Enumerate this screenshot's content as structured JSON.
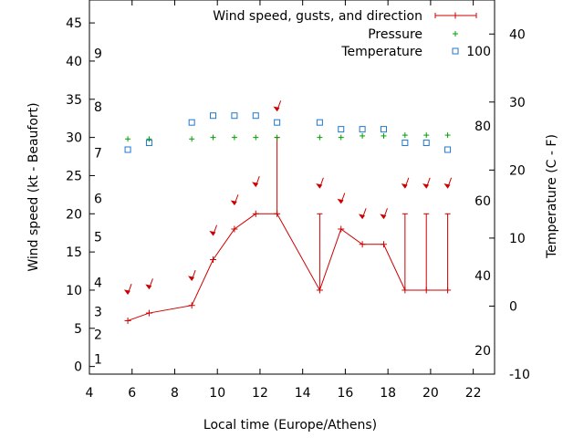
{
  "chart_data": {
    "type": "line",
    "xlabel": "Local time (Europe/Athens)",
    "ylabel": "Wind speed (kt - Beaufort)",
    "y2label": "Temperature (C - F)",
    "xlim": [
      4,
      23
    ],
    "ylim": [
      -1,
      48
    ],
    "y2lim": [
      -10,
      45
    ],
    "x_ticks": [
      4,
      6,
      8,
      10,
      12,
      14,
      16,
      18,
      20,
      22
    ],
    "y_ticks": [
      0,
      5,
      10,
      15,
      20,
      25,
      30,
      35,
      40,
      45
    ],
    "y2_ticks": [
      -10,
      0,
      10,
      20,
      30,
      40
    ],
    "beaufort_labels": [
      {
        "text": "1",
        "y": 1
      },
      {
        "text": "2",
        "y": 4.2
      },
      {
        "text": "3",
        "y": 7.2
      },
      {
        "text": "4",
        "y": 11
      },
      {
        "text": "5",
        "y": 17
      },
      {
        "text": "6",
        "y": 22
      },
      {
        "text": "7",
        "y": 28
      },
      {
        "text": "8",
        "y": 34
      },
      {
        "text": "9",
        "y": 41
      }
    ],
    "fahrenheit_labels": [
      {
        "text": "20",
        "y": -6.5
      },
      {
        "text": "40",
        "y": 4.5
      },
      {
        "text": "60",
        "y": 15.5
      },
      {
        "text": "80",
        "y": 26.5
      },
      {
        "text": "100",
        "y": 37.5
      }
    ],
    "legend": {
      "position": "top-right",
      "entries": [
        {
          "label": "Wind speed, gusts, and direction",
          "color": "#cc0000",
          "marker": "errorbar"
        },
        {
          "label": "Pressure",
          "color": "#00a000",
          "marker": "plus"
        },
        {
          "label": "Temperature",
          "color": "#1f77cc",
          "marker": "square"
        }
      ]
    },
    "series": [
      {
        "name": "Wind speed, gusts, and direction",
        "color": "#cc0000",
        "x": [
          5.8,
          6.8,
          8.8,
          9.8,
          10.8,
          11.8,
          12.8,
          14.8,
          15.8,
          16.8,
          17.8,
          18.8,
          19.8,
          20.8
        ],
        "y": [
          6,
          7,
          8,
          14,
          18,
          20,
          20,
          10,
          18,
          16,
          16,
          10,
          10,
          10
        ],
        "gust": [
          6,
          7,
          8,
          14,
          18,
          20,
          30,
          20,
          18,
          16,
          16,
          20,
          20,
          20
        ],
        "arrow_y": [
          9.5,
          10.2,
          11.3,
          17.2,
          21.2,
          23.6,
          33.5,
          23.4,
          21.4,
          19.4,
          19.4,
          23.4,
          23.4,
          23.4
        ]
      },
      {
        "name": "Pressure",
        "color": "#00a000",
        "x": [
          5.8,
          6.8,
          8.8,
          9.8,
          10.8,
          11.8,
          12.8,
          14.8,
          15.8,
          16.8,
          17.8,
          18.8,
          19.8,
          20.8
        ],
        "y": [
          29.8,
          29.8,
          29.8,
          30,
          30,
          30,
          30,
          30,
          30,
          30.2,
          30.2,
          30.3,
          30.3,
          30.3
        ]
      },
      {
        "name": "Temperature",
        "color": "#1f77cc",
        "axis": "y2",
        "x": [
          5.8,
          6.8,
          8.8,
          9.8,
          10.8,
          11.8,
          12.8,
          14.8,
          15.8,
          16.8,
          17.8,
          18.8,
          19.8,
          20.8
        ],
        "y": [
          23,
          24,
          27,
          28,
          28,
          28,
          27,
          27,
          26,
          26,
          26,
          24,
          24,
          23
        ]
      }
    ]
  }
}
